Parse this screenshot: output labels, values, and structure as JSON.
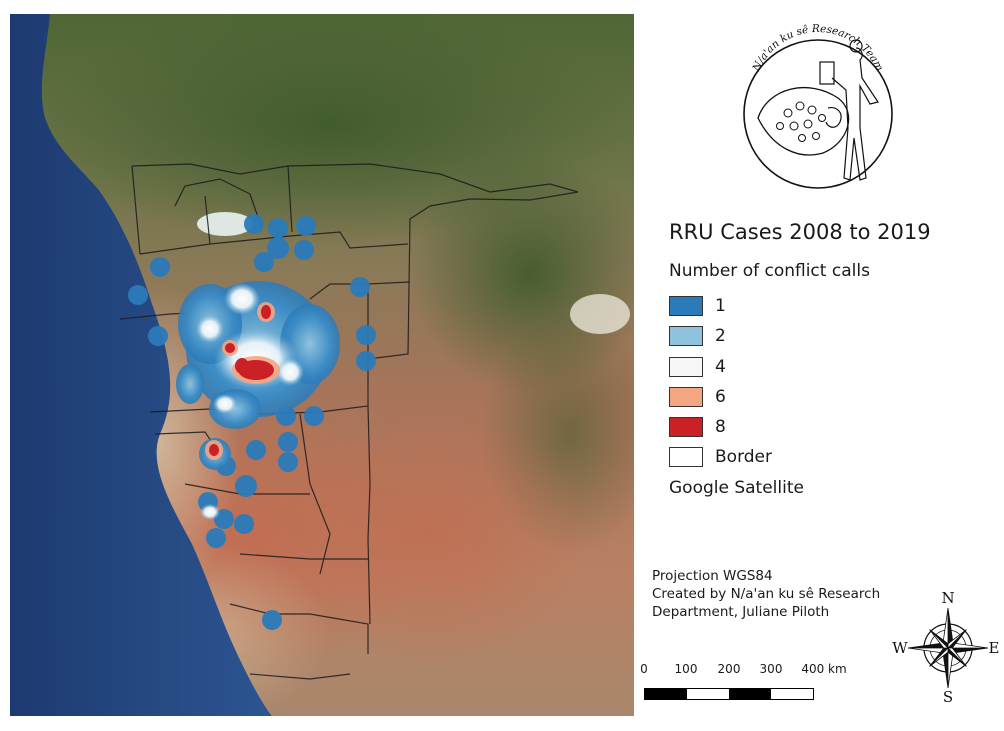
{
  "logo": {
    "text": "N/a'an ku sê Research Team"
  },
  "legend": {
    "title": "RRU Cases 2008 to 2019",
    "subtitle": "Number of conflict calls",
    "items": [
      {
        "label": "1",
        "color": "#2b7bba"
      },
      {
        "label": "2",
        "color": "#8fc2de"
      },
      {
        "label": "4",
        "color": "#f7f7f7"
      },
      {
        "label": "6",
        "color": "#f4a582"
      },
      {
        "label": "8",
        "color": "#ca2026"
      }
    ],
    "border_label": "Border",
    "base_layer": "Google Satellite"
  },
  "credits": {
    "line1": "Projection WGS84",
    "line2": "Created by N/a'an ku sê Research",
    "line3": "Department, Juliane Piloth"
  },
  "scalebar": {
    "labels": [
      "0",
      "100",
      "200",
      "300",
      "400 km"
    ]
  },
  "compass": {
    "n": "N",
    "e": "E",
    "s": "S",
    "w": "W"
  }
}
